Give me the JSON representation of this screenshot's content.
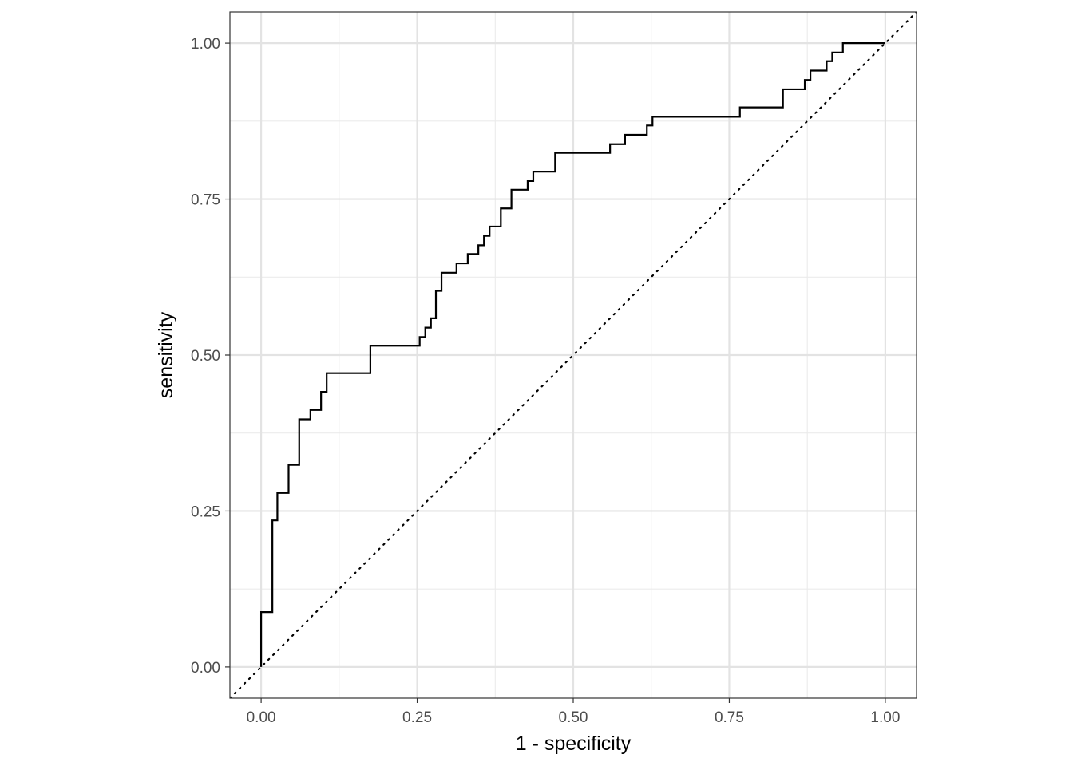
{
  "chart_data": {
    "type": "line",
    "title": "",
    "xlabel": "1 - specificity",
    "ylabel": "sensitivity",
    "xlim": [
      -0.05,
      1.05
    ],
    "ylim": [
      -0.05,
      1.05
    ],
    "grid": true,
    "legend": "none",
    "x_ticks": [
      0,
      0.25,
      0.5,
      0.75,
      1
    ],
    "x_tick_labels": [
      "0.00",
      "0.25",
      "0.50",
      "0.75",
      "1.00"
    ],
    "y_ticks": [
      0,
      0.25,
      0.5,
      0.75,
      1
    ],
    "y_tick_labels": [
      "0.00",
      "0.25",
      "0.50",
      "0.75",
      "1.00"
    ],
    "series": [
      {
        "style": "step",
        "color": "#000000",
        "points": [
          [
            0.0,
            0.0
          ],
          [
            0.0,
            0.088
          ],
          [
            0.018,
            0.088
          ],
          [
            0.018,
            0.235
          ],
          [
            0.026,
            0.235
          ],
          [
            0.026,
            0.279
          ],
          [
            0.044,
            0.279
          ],
          [
            0.044,
            0.324
          ],
          [
            0.061,
            0.324
          ],
          [
            0.061,
            0.397
          ],
          [
            0.079,
            0.397
          ],
          [
            0.079,
            0.412
          ],
          [
            0.096,
            0.412
          ],
          [
            0.096,
            0.441
          ],
          [
            0.105,
            0.441
          ],
          [
            0.105,
            0.471
          ],
          [
            0.175,
            0.471
          ],
          [
            0.175,
            0.515
          ],
          [
            0.254,
            0.515
          ],
          [
            0.254,
            0.529
          ],
          [
            0.263,
            0.529
          ],
          [
            0.263,
            0.544
          ],
          [
            0.272,
            0.544
          ],
          [
            0.272,
            0.559
          ],
          [
            0.28,
            0.559
          ],
          [
            0.28,
            0.603
          ],
          [
            0.289,
            0.603
          ],
          [
            0.289,
            0.632
          ],
          [
            0.313,
            0.632
          ],
          [
            0.313,
            0.647
          ],
          [
            0.331,
            0.647
          ],
          [
            0.331,
            0.662
          ],
          [
            0.348,
            0.662
          ],
          [
            0.348,
            0.676
          ],
          [
            0.357,
            0.676
          ],
          [
            0.357,
            0.691
          ],
          [
            0.366,
            0.691
          ],
          [
            0.366,
            0.706
          ],
          [
            0.384,
            0.706
          ],
          [
            0.384,
            0.735
          ],
          [
            0.401,
            0.735
          ],
          [
            0.401,
            0.765
          ],
          [
            0.427,
            0.765
          ],
          [
            0.427,
            0.779
          ],
          [
            0.436,
            0.779
          ],
          [
            0.436,
            0.794
          ],
          [
            0.471,
            0.794
          ],
          [
            0.471,
            0.824
          ],
          [
            0.559,
            0.824
          ],
          [
            0.559,
            0.838
          ],
          [
            0.583,
            0.838
          ],
          [
            0.583,
            0.853
          ],
          [
            0.618,
            0.853
          ],
          [
            0.618,
            0.868
          ],
          [
            0.627,
            0.868
          ],
          [
            0.627,
            0.882
          ],
          [
            0.767,
            0.882
          ],
          [
            0.767,
            0.897
          ],
          [
            0.836,
            0.897
          ],
          [
            0.836,
            0.926
          ],
          [
            0.871,
            0.926
          ],
          [
            0.871,
            0.941
          ],
          [
            0.88,
            0.941
          ],
          [
            0.88,
            0.956
          ],
          [
            0.906,
            0.956
          ],
          [
            0.906,
            0.971
          ],
          [
            0.915,
            0.971
          ],
          [
            0.915,
            0.985
          ],
          [
            0.932,
            0.985
          ],
          [
            0.932,
            1.0
          ],
          [
            1.0,
            1.0
          ]
        ]
      }
    ],
    "reference_line": {
      "style": "dotted",
      "color": "#000000",
      "from": [
        -0.05,
        -0.05
      ],
      "to": [
        1.05,
        1.05
      ]
    }
  }
}
